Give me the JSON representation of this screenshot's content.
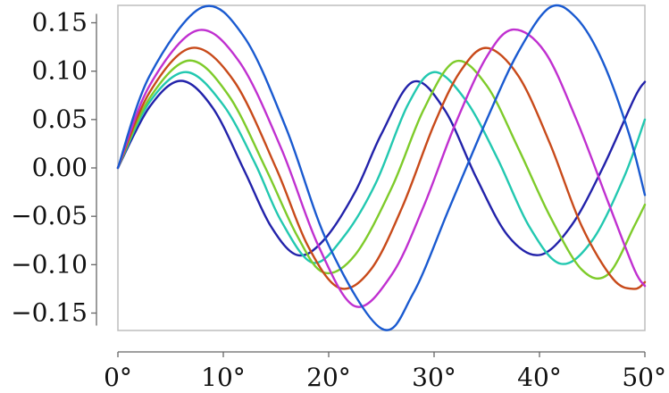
{
  "chart_data": {
    "type": "line",
    "title": "",
    "xlabel": "",
    "ylabel": "",
    "xlim": [
      0,
      50
    ],
    "ylim": [
      -0.168,
      0.168
    ],
    "x_ticks": [
      0,
      10,
      20,
      30,
      40,
      50
    ],
    "x_tick_labels": [
      "0°",
      "10°",
      "20°",
      "30°",
      "40°",
      "50°"
    ],
    "y_ticks": [
      0.15,
      0.1,
      0.05,
      0.0,
      -0.05,
      -0.1,
      -0.15
    ],
    "y_tick_labels": [
      "0.15",
      "0.10",
      "0.05",
      "0.00",
      "−0.05",
      "−0.10",
      "−0.15"
    ],
    "grid": false,
    "legend": "none",
    "series": [
      {
        "color": "#2222aa",
        "points": [
          [
            0,
            0
          ],
          [
            3,
            0.063
          ],
          [
            6,
            0.09
          ],
          [
            9,
            0.062
          ],
          [
            12,
            -0.003
          ],
          [
            14.5,
            -0.06
          ],
          [
            17,
            -0.09
          ],
          [
            19.5,
            -0.075
          ],
          [
            22.5,
            -0.025
          ],
          [
            25,
            0.035
          ],
          [
            28,
            0.089
          ],
          [
            31,
            0.06
          ],
          [
            34,
            -0.01
          ],
          [
            37,
            -0.07
          ],
          [
            40,
            -0.09
          ],
          [
            43,
            -0.06
          ],
          [
            46,
            0.0
          ],
          [
            49,
            0.072
          ],
          [
            50,
            0.089
          ]
        ]
      },
      {
        "color": "#22c8b0",
        "points": [
          [
            0,
            0
          ],
          [
            3,
            0.068
          ],
          [
            6.5,
            0.099
          ],
          [
            10,
            0.065
          ],
          [
            13,
            0.005
          ],
          [
            15.5,
            -0.055
          ],
          [
            18.5,
            -0.098
          ],
          [
            21.5,
            -0.07
          ],
          [
            24.5,
            -0.015
          ],
          [
            27.5,
            0.065
          ],
          [
            30,
            0.099
          ],
          [
            33,
            0.07
          ],
          [
            36,
            0.01
          ],
          [
            39,
            -0.06
          ],
          [
            42,
            -0.099
          ],
          [
            45,
            -0.075
          ],
          [
            48,
            -0.01
          ],
          [
            50,
            0.05
          ]
        ]
      },
      {
        "color": "#7ecb2a",
        "points": [
          [
            0,
            0
          ],
          [
            3,
            0.072
          ],
          [
            6.8,
            0.111
          ],
          [
            10.5,
            0.075
          ],
          [
            14,
            0.0
          ],
          [
            17,
            -0.07
          ],
          [
            19.5,
            -0.108
          ],
          [
            22.5,
            -0.09
          ],
          [
            26,
            -0.02
          ],
          [
            29,
            0.06
          ],
          [
            32,
            0.11
          ],
          [
            35,
            0.085
          ],
          [
            38,
            0.02
          ],
          [
            41,
            -0.05
          ],
          [
            44,
            -0.105
          ],
          [
            46.5,
            -0.11
          ],
          [
            49,
            -0.06
          ],
          [
            50,
            -0.038
          ]
        ]
      },
      {
        "color": "#c84a1a",
        "points": [
          [
            0,
            0
          ],
          [
            3,
            0.078
          ],
          [
            7,
            0.124
          ],
          [
            11,
            0.09
          ],
          [
            15,
            0.0
          ],
          [
            18,
            -0.08
          ],
          [
            21,
            -0.124
          ],
          [
            24,
            -0.105
          ],
          [
            27,
            -0.04
          ],
          [
            30,
            0.045
          ],
          [
            32.5,
            0.1
          ],
          [
            35,
            0.124
          ],
          [
            38,
            0.095
          ],
          [
            41,
            0.025
          ],
          [
            44,
            -0.06
          ],
          [
            47,
            -0.115
          ],
          [
            49,
            -0.125
          ],
          [
            50,
            -0.118
          ]
        ]
      },
      {
        "color": "#c030d0",
        "points": [
          [
            0,
            0
          ],
          [
            3,
            0.085
          ],
          [
            7.5,
            0.142
          ],
          [
            11.5,
            0.11
          ],
          [
            15.5,
            0.02
          ],
          [
            19,
            -0.08
          ],
          [
            22.5,
            -0.143
          ],
          [
            26,
            -0.11
          ],
          [
            29,
            -0.04
          ],
          [
            32,
            0.045
          ],
          [
            35,
            0.115
          ],
          [
            37.5,
            0.143
          ],
          [
            40.5,
            0.12
          ],
          [
            43.5,
            0.05
          ],
          [
            46.5,
            -0.035
          ],
          [
            49,
            -0.105
          ],
          [
            50,
            -0.122
          ]
        ]
      },
      {
        "color": "#1a5ad0",
        "points": [
          [
            0,
            0
          ],
          [
            3,
            0.095
          ],
          [
            8,
            0.166
          ],
          [
            12,
            0.135
          ],
          [
            16,
            0.04
          ],
          [
            20,
            -0.08
          ],
          [
            25,
            -0.166
          ],
          [
            28,
            -0.13
          ],
          [
            31.5,
            -0.04
          ],
          [
            35,
            0.05
          ],
          [
            38,
            0.12
          ],
          [
            41,
            0.166
          ],
          [
            43.5,
            0.155
          ],
          [
            46,
            0.11
          ],
          [
            48.5,
            0.035
          ],
          [
            50,
            -0.028
          ]
        ]
      }
    ]
  }
}
